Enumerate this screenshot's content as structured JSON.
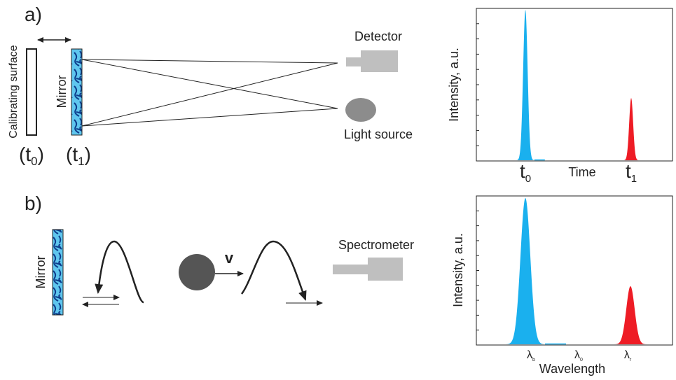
{
  "panel_a": {
    "label": "a)",
    "calibrating_surface": "Calibrating surface",
    "mirror": "Mirror",
    "t0_label": {
      "open": "(t",
      "sub": "0",
      "close": ")"
    },
    "t1_label": {
      "open": "(t",
      "sub": "1",
      "close": ")"
    },
    "detector": "Detector",
    "light_source": "Light source",
    "chart": {
      "y_label": "Intensity, a.u.",
      "x_label": "Time",
      "t0": {
        "base": "t",
        "sub": "0"
      },
      "t1": {
        "base": "t",
        "sub": "1"
      }
    }
  },
  "panel_b": {
    "label": "b)",
    "mirror": "Mirror",
    "velocity": "v",
    "spectrometer": "Spectrometer",
    "chart": {
      "y_label": "Intensity, a.u.",
      "x_label": "Wavelength",
      "lambda_b": {
        "base": "λ",
        "sub": "b"
      },
      "lambda_0": {
        "base": "λ",
        "sub": "0"
      },
      "lambda_r": {
        "base": "λ",
        "sub": "r"
      }
    }
  }
}
